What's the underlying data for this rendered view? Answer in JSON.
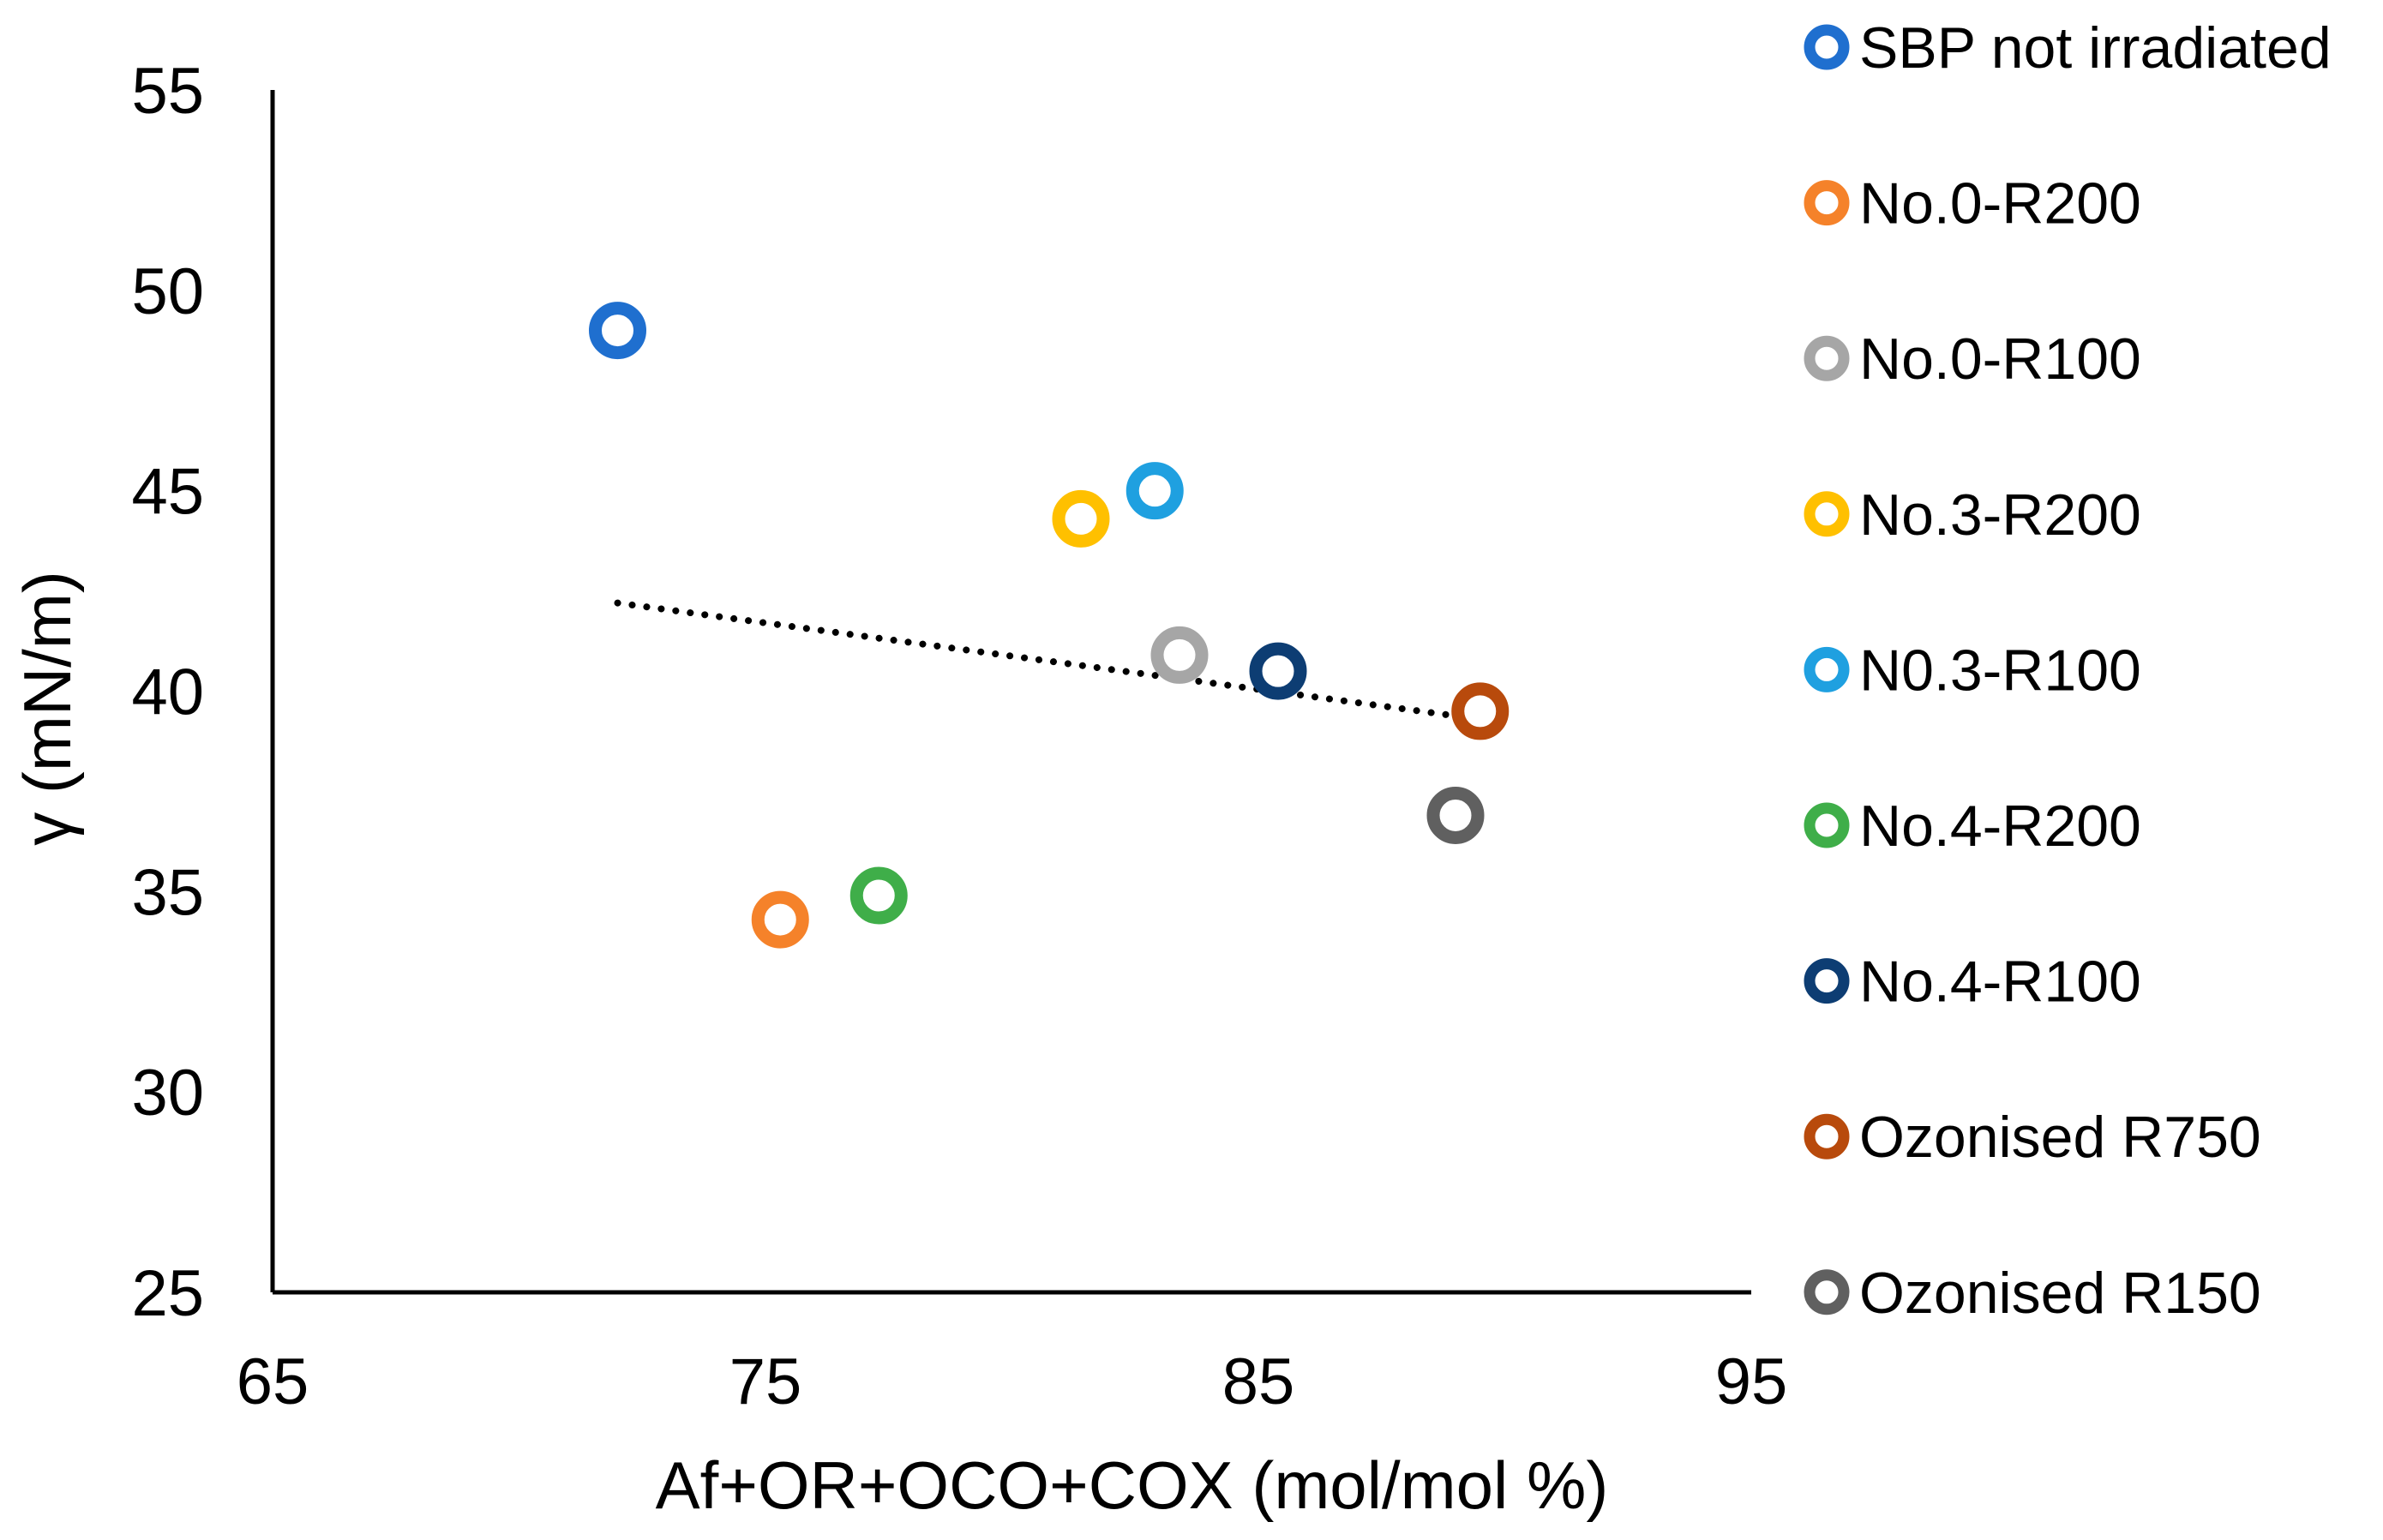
{
  "chart_data": {
    "type": "scatter",
    "title": "",
    "xlabel": "Af+OR+OCO+COX  (mol/mol %)",
    "ylabel": "γ (mN/m)",
    "xlim": [
      65,
      95
    ],
    "ylim": [
      25,
      55
    ],
    "x_ticks": [
      65,
      75,
      85,
      95
    ],
    "y_ticks": [
      25,
      30,
      35,
      40,
      45,
      50,
      55
    ],
    "x_tick_labels": [
      "65",
      "75",
      "85",
      "95"
    ],
    "y_tick_labels": [
      "25",
      "30",
      "35",
      "40",
      "45",
      "50",
      "55"
    ],
    "grid": false,
    "legend_position": "right",
    "marker": "open-circle",
    "series": [
      {
        "name": "SBP not irradiated",
        "color": "#1f6fcf",
        "x": [
          72.0
        ],
        "y": [
          49.0
        ]
      },
      {
        "name": "No.0-R200",
        "color": "#f5822a",
        "x": [
          75.3
        ],
        "y": [
          34.3
        ]
      },
      {
        "name": "No.0-R100",
        "color": "#a6a6a6",
        "x": [
          83.4
        ],
        "y": [
          40.9
        ]
      },
      {
        "name": "No.3-R200",
        "color": "#ffc000",
        "x": [
          81.4
        ],
        "y": [
          44.3
        ]
      },
      {
        "name": "N0.3-R100",
        "color": "#1fa0e0",
        "x": [
          82.9
        ],
        "y": [
          45.0
        ]
      },
      {
        "name": "No.4-R200",
        "color": "#3fae49",
        "x": [
          77.3
        ],
        "y": [
          34.9
        ]
      },
      {
        "name": "No.4-R100",
        "color": "#0d3d73",
        "x": [
          85.4
        ],
        "y": [
          40.5
        ]
      },
      {
        "name": "Ozonised R750",
        "color": "#b84a0c",
        "x": [
          89.5
        ],
        "y": [
          39.5
        ]
      },
      {
        "name": "Ozonised R150",
        "color": "#606060",
        "x": [
          89.0
        ],
        "y": [
          36.9
        ]
      }
    ],
    "trendline": {
      "style": "dotted",
      "color": "#000000",
      "x": [
        72.0,
        89.5
      ],
      "y": [
        42.2,
        39.3
      ]
    }
  }
}
